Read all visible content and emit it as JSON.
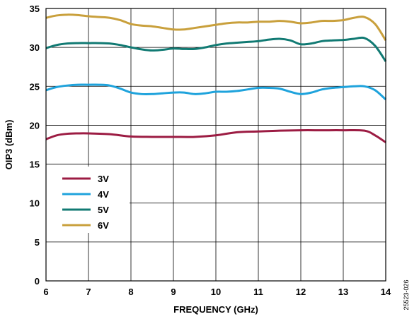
{
  "chart_data": {
    "type": "line",
    "xlabel": "FREQUENCY (GHz)",
    "ylabel": "OIP3 (dBm)",
    "xlim": [
      6,
      14
    ],
    "ylim": [
      0,
      35
    ],
    "xticks": [
      6,
      7,
      8,
      9,
      10,
      11,
      12,
      13,
      14
    ],
    "yticks": [
      0,
      5,
      10,
      15,
      20,
      25,
      30,
      35
    ],
    "grid": true,
    "legend_position": "lower-left",
    "figure_code": "25523-026",
    "series": [
      {
        "name": "3V",
        "color": "#9c1c43",
        "x": [
          6.0,
          6.25,
          6.5,
          6.75,
          7.0,
          7.5,
          8.0,
          8.5,
          9.0,
          9.5,
          10.0,
          10.5,
          11.0,
          11.5,
          12.0,
          12.5,
          13.0,
          13.5,
          13.75,
          14.0
        ],
        "y": [
          18.2,
          18.7,
          18.9,
          18.95,
          18.95,
          18.85,
          18.55,
          18.5,
          18.5,
          18.5,
          18.7,
          19.1,
          19.2,
          19.3,
          19.35,
          19.35,
          19.35,
          19.3,
          18.7,
          17.8
        ]
      },
      {
        "name": "4V",
        "color": "#1fa3dc",
        "x": [
          6.0,
          6.25,
          6.5,
          6.75,
          7.0,
          7.25,
          7.5,
          7.75,
          8.0,
          8.25,
          8.5,
          8.75,
          9.0,
          9.25,
          9.5,
          9.75,
          10.0,
          10.25,
          10.5,
          10.75,
          11.0,
          11.25,
          11.5,
          11.75,
          12.0,
          12.25,
          12.5,
          12.75,
          13.0,
          13.25,
          13.5,
          13.75,
          14.0
        ],
        "y": [
          24.5,
          24.9,
          25.1,
          25.2,
          25.2,
          25.2,
          25.1,
          24.7,
          24.2,
          24.0,
          24.0,
          24.1,
          24.2,
          24.2,
          24.0,
          24.1,
          24.3,
          24.3,
          24.4,
          24.6,
          24.8,
          24.8,
          24.7,
          24.3,
          24.0,
          24.2,
          24.6,
          24.8,
          24.9,
          25.0,
          25.0,
          24.5,
          23.3
        ]
      },
      {
        "name": "5V",
        "color": "#117a73",
        "x": [
          6.0,
          6.25,
          6.5,
          6.75,
          7.0,
          7.25,
          7.5,
          7.75,
          8.0,
          8.25,
          8.5,
          8.75,
          9.0,
          9.25,
          9.5,
          9.75,
          10.0,
          10.25,
          10.5,
          10.75,
          11.0,
          11.25,
          11.5,
          11.75,
          12.0,
          12.25,
          12.5,
          12.75,
          13.0,
          13.25,
          13.5,
          13.75,
          14.0
        ],
        "y": [
          29.9,
          30.3,
          30.5,
          30.55,
          30.55,
          30.55,
          30.5,
          30.3,
          30.0,
          29.75,
          29.6,
          29.7,
          29.85,
          29.8,
          29.8,
          30.0,
          30.3,
          30.5,
          30.6,
          30.7,
          30.8,
          31.0,
          31.1,
          30.9,
          30.4,
          30.5,
          30.8,
          30.9,
          30.95,
          31.1,
          31.2,
          30.2,
          28.2
        ]
      },
      {
        "name": "6V",
        "color": "#c9a03c",
        "x": [
          6.0,
          6.25,
          6.5,
          6.75,
          7.0,
          7.25,
          7.5,
          7.75,
          8.0,
          8.25,
          8.5,
          8.75,
          9.0,
          9.25,
          9.5,
          9.75,
          10.0,
          10.25,
          10.5,
          10.75,
          11.0,
          11.25,
          11.5,
          11.75,
          12.0,
          12.25,
          12.5,
          12.75,
          13.0,
          13.25,
          13.5,
          13.75,
          14.0
        ],
        "y": [
          33.8,
          34.1,
          34.2,
          34.15,
          34.0,
          33.9,
          33.8,
          33.5,
          33.0,
          32.8,
          32.7,
          32.5,
          32.3,
          32.3,
          32.5,
          32.7,
          32.9,
          33.1,
          33.2,
          33.2,
          33.3,
          33.3,
          33.4,
          33.3,
          33.1,
          33.2,
          33.4,
          33.4,
          33.5,
          33.8,
          33.9,
          33.0,
          30.9
        ]
      }
    ]
  }
}
